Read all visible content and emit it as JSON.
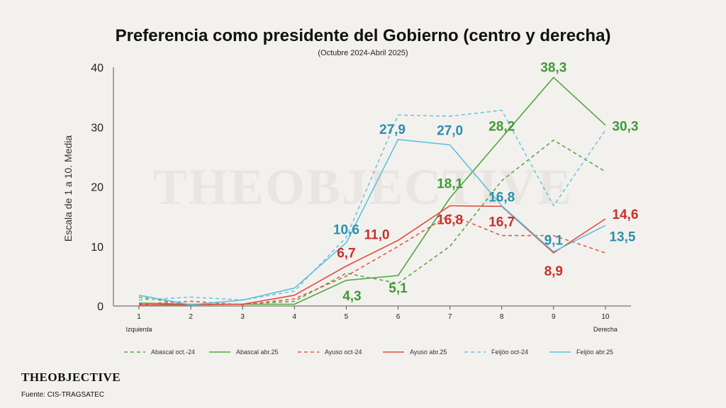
{
  "chart_data": {
    "type": "line",
    "title": "Preferencia como presidente del Gobierno (centro y derecha)",
    "subtitle": "(Octubre 2024-Abril 2025)",
    "ylabel": "Escala de 1 a 10. Media",
    "ylim": [
      0,
      40
    ],
    "yticks": [
      "0",
      "10",
      "20",
      "30",
      "40"
    ],
    "x": [
      "1",
      "2",
      "3",
      "4",
      "5",
      "6",
      "7",
      "8",
      "9",
      "10"
    ],
    "x_side_labels": {
      "left": "Izquierda",
      "right": "Derecha"
    },
    "grid": false,
    "legend_position": "bottom",
    "series": [
      {
        "name": "Abascal oct.-24",
        "color": "#5aa845",
        "dashed": true,
        "values": [
          1.5,
          0.2,
          0.3,
          0.8,
          5.5,
          3.8,
          10.0,
          21.0,
          27.8,
          22.5
        ]
      },
      {
        "name": "Abascal abr.25",
        "color": "#4fa83d",
        "dashed": false,
        "values": [
          0.5,
          0.3,
          0.3,
          0.3,
          4.3,
          5.1,
          18.1,
          28.2,
          38.3,
          30.3
        ]
      },
      {
        "name": "Ayuso oct-24",
        "color": "#e05a4d",
        "dashed": true,
        "values": [
          0.3,
          0.8,
          0.2,
          1.2,
          5.0,
          10.0,
          15.3,
          11.8,
          11.8,
          8.9
        ]
      },
      {
        "name": "Ayuso abr.25",
        "color": "#e04a3d",
        "dashed": false,
        "values": [
          0.2,
          0.2,
          0.3,
          1.8,
          6.7,
          11.0,
          16.8,
          16.7,
          8.9,
          14.6
        ]
      },
      {
        "name": "Feijóo oct-24",
        "color": "#6cc6dc",
        "dashed": true,
        "values": [
          1.0,
          1.5,
          1.0,
          2.5,
          11.5,
          32.0,
          31.8,
          32.8,
          16.8,
          29.5
        ]
      },
      {
        "name": "Feijóo abr.25",
        "color": "#5ec0dc",
        "dashed": false,
        "values": [
          1.8,
          0.2,
          1.0,
          3.0,
          10.6,
          27.9,
          27.0,
          16.8,
          9.1,
          13.5
        ]
      }
    ],
    "annotations": [
      {
        "text": "38,3",
        "x": "9",
        "y": 38.3,
        "color": "#3f9a35"
      },
      {
        "text": "30,3",
        "x": "10",
        "y": 30.3,
        "color": "#3f9a35"
      },
      {
        "text": "28,2",
        "x": "8",
        "y": 28.2,
        "color": "#3f9a35"
      },
      {
        "text": "18,1",
        "x": "7",
        "y": 18.1,
        "color": "#3f9a35"
      },
      {
        "text": "5,1",
        "x": "6",
        "y": 5.1,
        "color": "#3f9a35"
      },
      {
        "text": "4,3",
        "x": "5",
        "y": 4.3,
        "color": "#3f9a35"
      },
      {
        "text": "27,9",
        "x": "6",
        "y": 27.9,
        "color": "#2a8fad"
      },
      {
        "text": "27,0",
        "x": "7",
        "y": 27.0,
        "color": "#2a8fad"
      },
      {
        "text": "16,8",
        "x": "8",
        "y": 16.8,
        "color": "#2a8fad"
      },
      {
        "text": "10,6",
        "x": "5",
        "y": 10.6,
        "color": "#2a8fad"
      },
      {
        "text": "9,1",
        "x": "9",
        "y": 9.1,
        "color": "#2a8fad"
      },
      {
        "text": "13,5",
        "x": "10",
        "y": 13.5,
        "color": "#2a8fad"
      },
      {
        "text": "11,0",
        "x": "6",
        "y": 11.0,
        "color": "#c8302a"
      },
      {
        "text": "16,8",
        "x": "7",
        "y": 16.8,
        "color": "#c8302a"
      },
      {
        "text": "16,7",
        "x": "8",
        "y": 16.7,
        "color": "#c8302a"
      },
      {
        "text": "6,7",
        "x": "5",
        "y": 6.7,
        "color": "#c8302a"
      },
      {
        "text": "8,9",
        "x": "9",
        "y": 8.9,
        "color": "#c8302a"
      },
      {
        "text": "14,6",
        "x": "10",
        "y": 14.6,
        "color": "#c8302a"
      }
    ]
  },
  "watermark": "THEOBJECTIVE",
  "brand": "THEOBJECTIVE",
  "source": "Fuente: CIS-TRAGSATEC"
}
